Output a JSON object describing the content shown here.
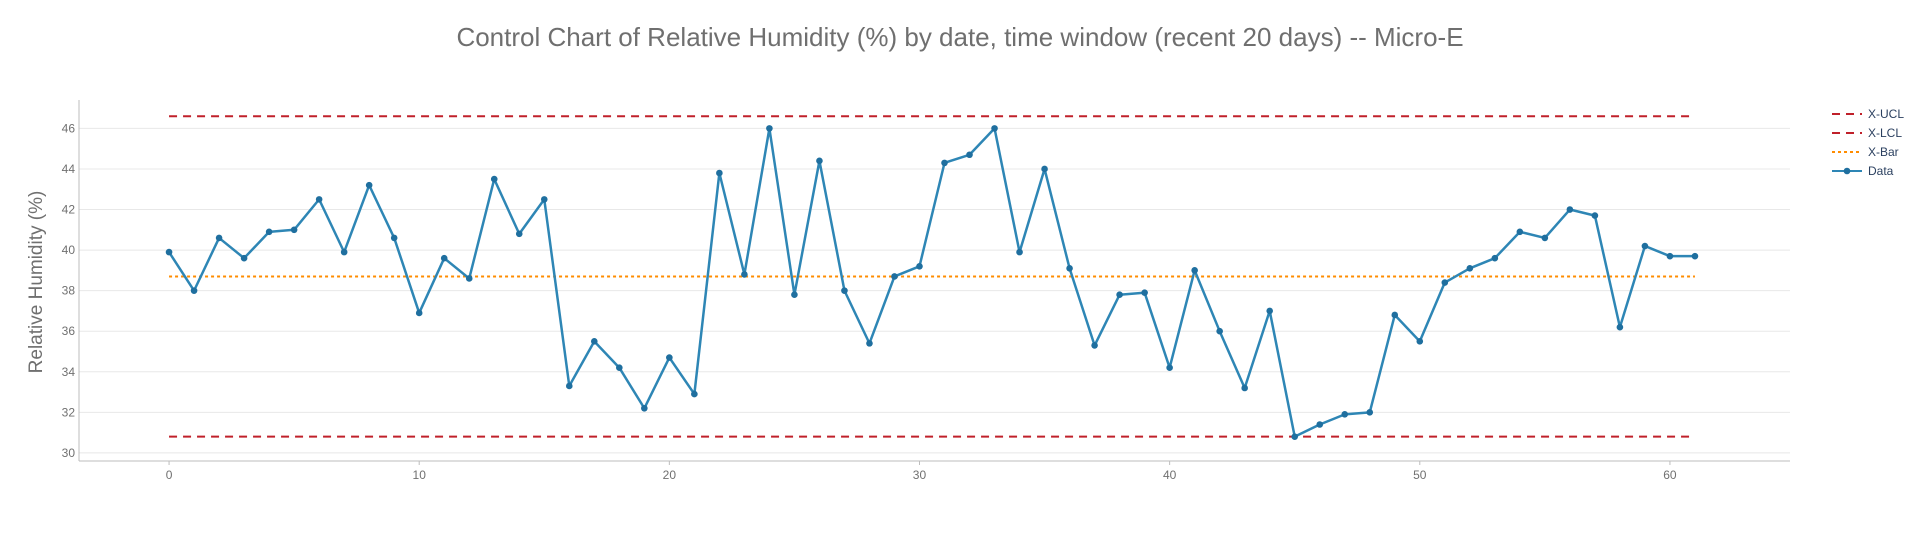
{
  "chart_data": {
    "type": "line",
    "title": "Control Chart of Relative Humidity (%) by date, time window (recent 20 days) -- Micro-E",
    "ylabel": "Relative Humidity (%)",
    "xlabel": "",
    "xlim": [
      -3.6,
      64.8
    ],
    "ylim": [
      29.6,
      47.4
    ],
    "x_ticks": [
      0,
      10,
      20,
      30,
      40,
      50,
      60
    ],
    "y_ticks": [
      30,
      32,
      34,
      36,
      38,
      40,
      42,
      44,
      46
    ],
    "grid": true,
    "legend_position": "top-right",
    "x": [
      0,
      1,
      2,
      3,
      4,
      5,
      6,
      7,
      8,
      9,
      10,
      11,
      12,
      13,
      14,
      15,
      16,
      17,
      18,
      19,
      20,
      21,
      22,
      23,
      24,
      25,
      26,
      27,
      28,
      29,
      30,
      31,
      32,
      33,
      34,
      35,
      36,
      37,
      38,
      39,
      40,
      41,
      42,
      43,
      44,
      45,
      46,
      47,
      48,
      49,
      50,
      51,
      52,
      53,
      54,
      55,
      56,
      57,
      58,
      59,
      60,
      61
    ],
    "series": [
      {
        "name": "X-UCL",
        "style": "dashed",
        "color": "#c0202a",
        "values_constant": 46.6
      },
      {
        "name": "X-LCL",
        "style": "dashed",
        "color": "#c0202a",
        "values_constant": 30.8
      },
      {
        "name": "X-Bar",
        "style": "dotted",
        "color": "#ff8c00",
        "values_constant": 38.7
      },
      {
        "name": "Data",
        "style": "line+markers",
        "color": "#2e86b5",
        "values": [
          39.9,
          38.0,
          40.6,
          39.6,
          40.9,
          41.0,
          42.5,
          39.9,
          43.2,
          40.6,
          36.9,
          39.6,
          38.6,
          43.5,
          40.8,
          42.5,
          33.3,
          35.5,
          34.2,
          32.2,
          34.7,
          32.9,
          43.8,
          38.8,
          46.0,
          37.8,
          44.4,
          38.0,
          35.4,
          38.7,
          39.2,
          44.3,
          44.7,
          46.0,
          39.9,
          44.0,
          39.1,
          35.3,
          37.8,
          37.9,
          34.2,
          39.0,
          36.0,
          33.2,
          37.0,
          30.8,
          31.4,
          31.9,
          32.0,
          36.8,
          35.5,
          38.4,
          39.1,
          39.6,
          40.9,
          40.6,
          42.0,
          41.7,
          36.2,
          40.2,
          39.7,
          39.7
        ]
      }
    ]
  }
}
